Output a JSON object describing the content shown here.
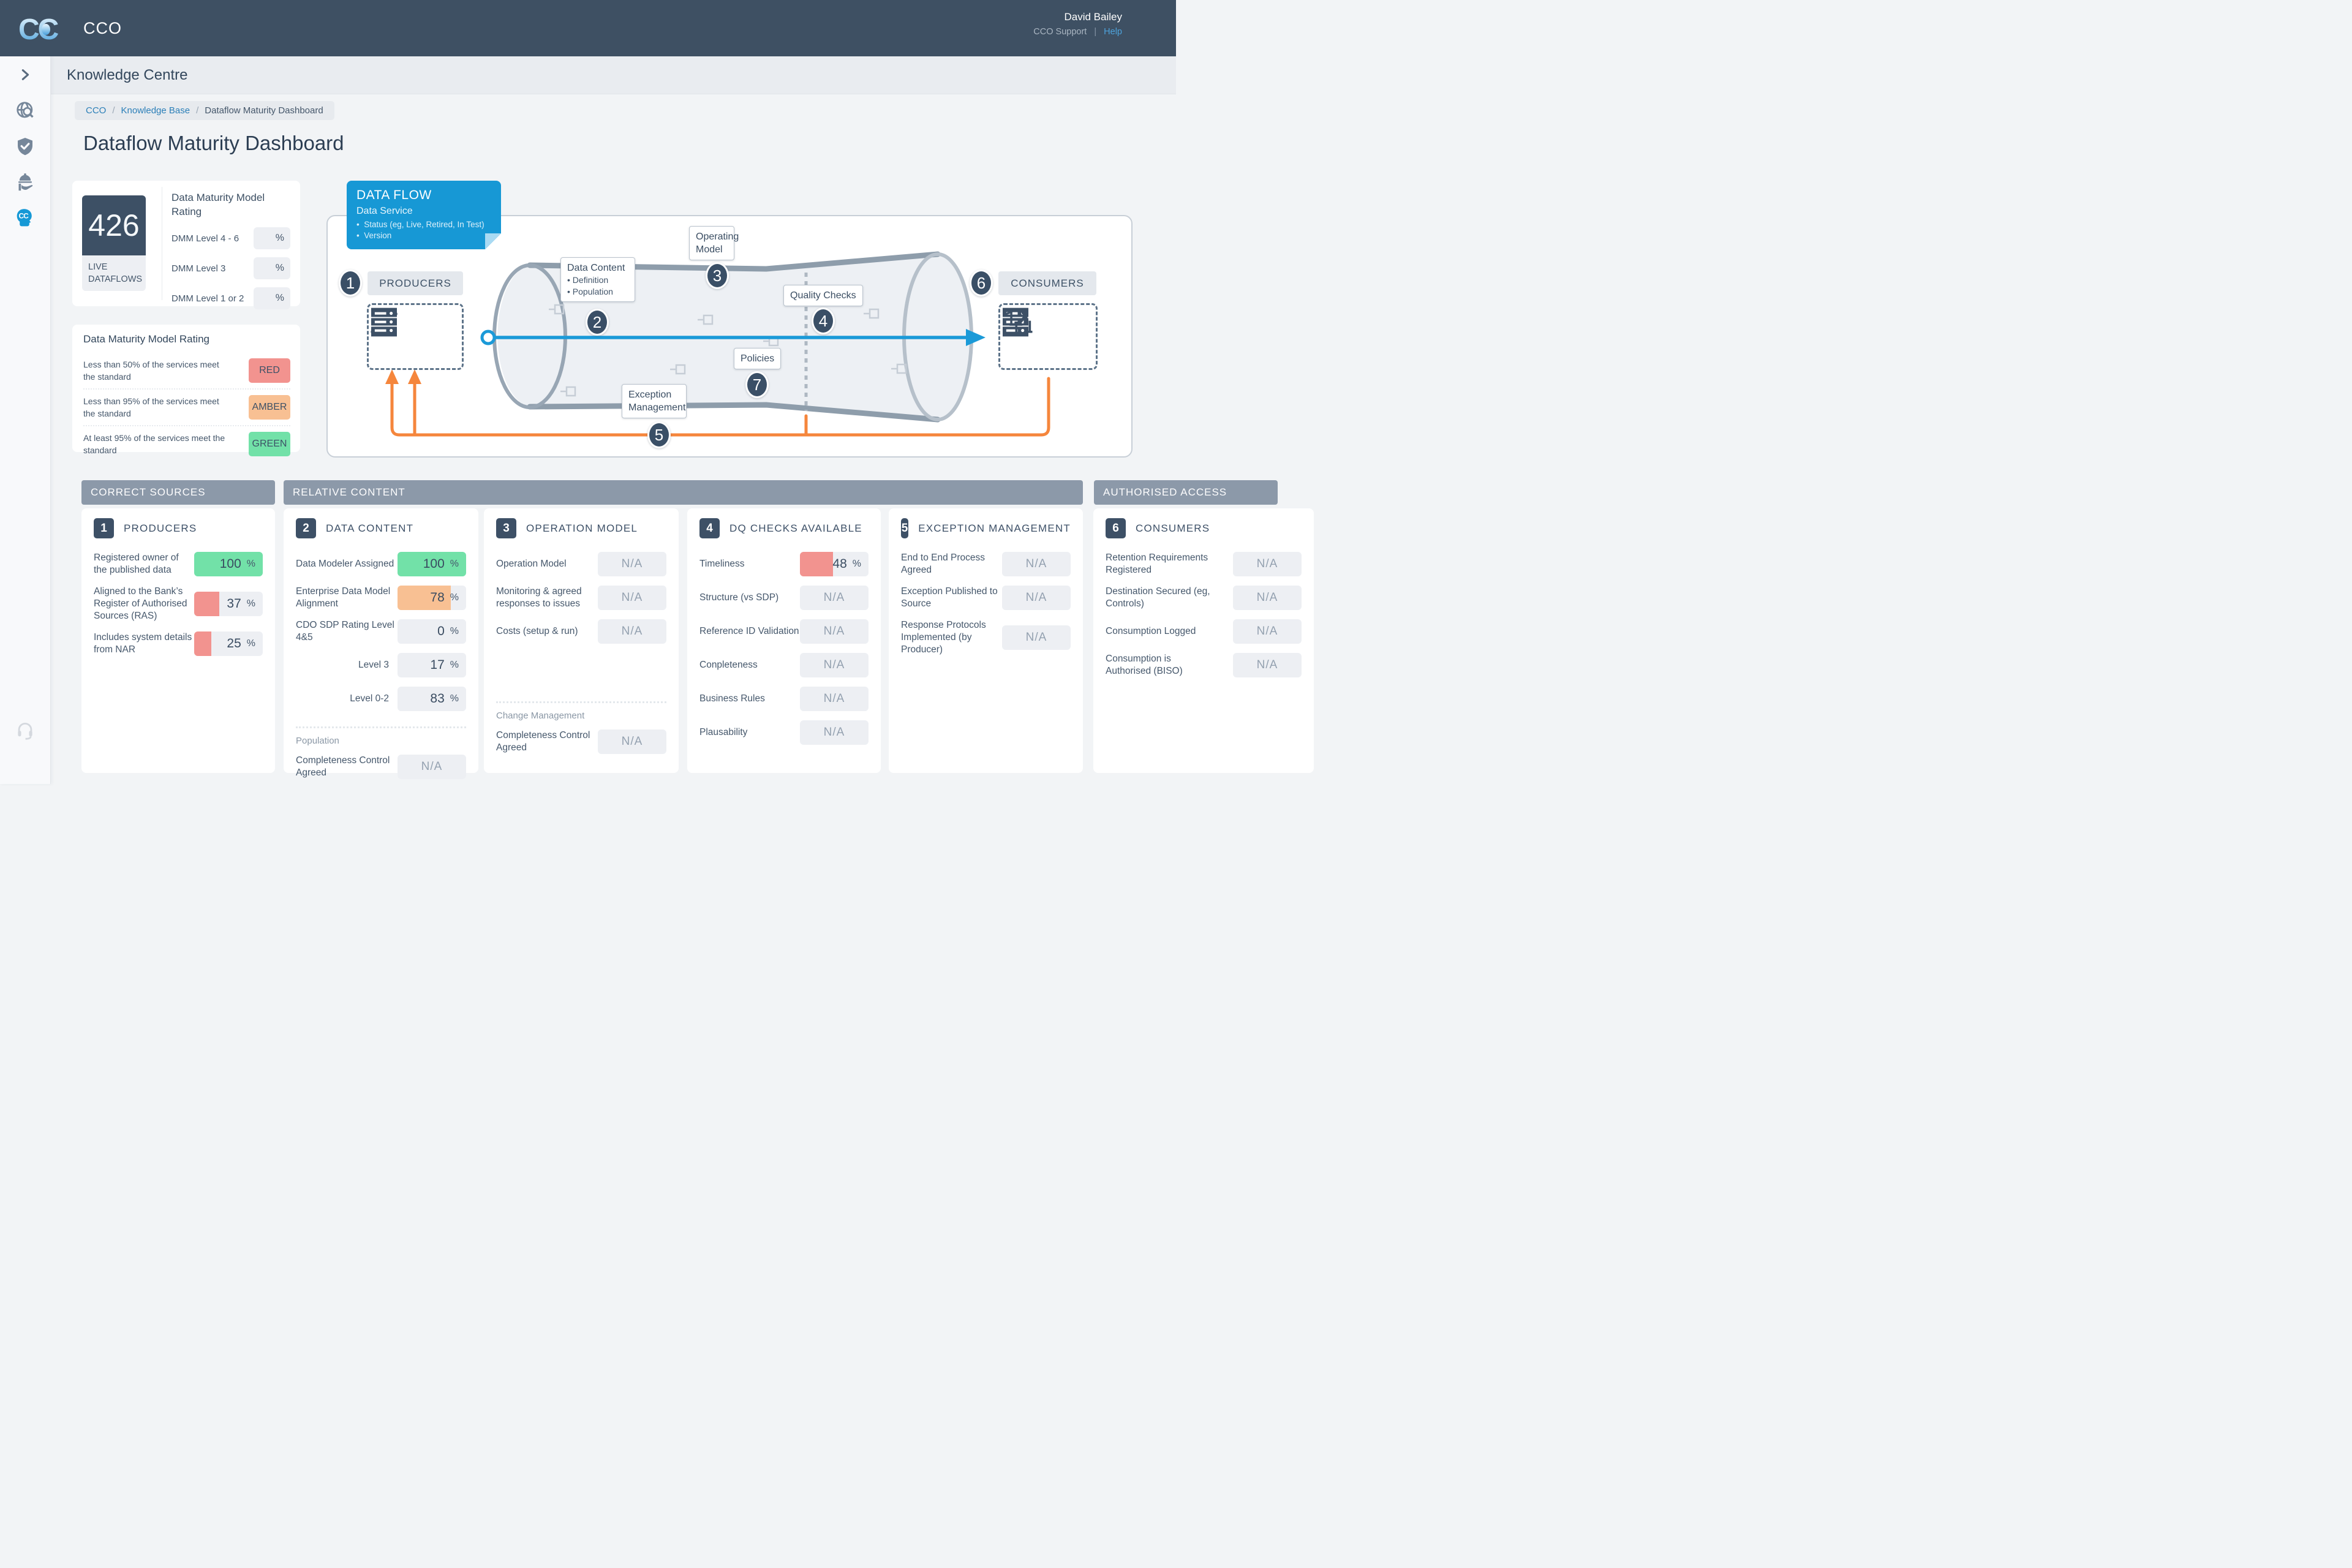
{
  "colors": {
    "header": "#3e5063",
    "accent_blue": "#1b9ad8",
    "tooltip_blue": "#1798d5",
    "orange": "#f5863c",
    "navy_badge": "#3a4f66",
    "band_gray": "#8c99a9",
    "green": "#72e1a8",
    "red": "#f2938f",
    "amber": "#f8c093"
  },
  "header": {
    "app_name": "CCO",
    "user_name": "David Bailey",
    "support_label": "CCO Support",
    "help_label": "Help"
  },
  "sidebar": {
    "items": [
      "expand-chevron",
      "global-search",
      "governance-shield",
      "data-services",
      "knowledge-centre",
      "support-headset"
    ]
  },
  "page": {
    "section": "Knowledge Centre",
    "breadcrumb": [
      {
        "label": "CCO"
      },
      {
        "label": "Knowledge Base"
      },
      {
        "label": "Dataflow Maturity Dashboard"
      }
    ],
    "title": "Dataflow Maturity Dashboard"
  },
  "stats": {
    "live_count": "426",
    "live_label": "LIVE DATAFLOWS",
    "rating_title": "Data Maturity Model Rating",
    "unit": "%",
    "rows": [
      {
        "label": "DMM Level 4 - 6"
      },
      {
        "label": "DMM Level 3"
      },
      {
        "label": "DMM Level 1 or 2"
      }
    ]
  },
  "legend": {
    "title": "Data Maturity Model Rating",
    "rows": [
      {
        "text": "Less than 50% of the services meet the standard",
        "badge": "RED",
        "tone": "red"
      },
      {
        "text": "Less than 95% of the services meet the standard",
        "badge": "AMBER",
        "tone": "amber"
      },
      {
        "text": "At least 95% of the services meet the standard",
        "badge": "GREEN",
        "tone": "green"
      }
    ]
  },
  "tooltip": {
    "title": "DATA FLOW",
    "subtitle": "Data Service",
    "bullets": [
      "Status (eg, Live, Retired, In Test)",
      "Version"
    ]
  },
  "diagram": {
    "steps": [
      "1",
      "2",
      "3",
      "4",
      "5",
      "6",
      "7"
    ],
    "producers_label": "PRODUCERS",
    "consumers_label": "CONSUMERS",
    "data_content": {
      "title": "Data Content",
      "bullets": [
        "Definition",
        "Population"
      ]
    },
    "operating_model": "Operating Model",
    "quality_checks": "Quality Checks",
    "policies": "Policies",
    "exception_management": "Exception Management"
  },
  "sections": {
    "correct_sources": "CORRECT SOURCES",
    "relative_content": "RELATIVE CONTENT",
    "authorised_access": "AUTHORISED ACCESS"
  },
  "columns": [
    {
      "num": "1",
      "title": "PRODUCERS",
      "rows": [
        {
          "label": "Registered owner of the published data",
          "value": "100",
          "unit": "%",
          "fill": 100,
          "tone": "green"
        },
        {
          "label": "Aligned to the Bank’s Register of Authorised Sources (RAS)",
          "value": "37",
          "unit": "%",
          "fill": 37,
          "tone": "red"
        },
        {
          "label": "Includes system details from NAR",
          "value": "25",
          "unit": "%",
          "fill": 25,
          "tone": "red"
        }
      ]
    },
    {
      "num": "2",
      "title": "DATA CONTENT",
      "rows": [
        {
          "label": "Data Modeler Assigned",
          "value": "100",
          "unit": "%",
          "fill": 100,
          "tone": "green"
        },
        {
          "label": "Enterprise Data Model Alignment",
          "value": "78",
          "unit": "%",
          "fill": 78,
          "tone": "amber"
        },
        {
          "label": "CDO SDP Rating Level 4&5",
          "value": "0",
          "unit": "%",
          "fill": 0
        },
        {
          "label": "Level 3",
          "value": "17",
          "unit": "%",
          "fill": 0,
          "align": "right"
        },
        {
          "label": "Level 0-2",
          "value": "83",
          "unit": "%",
          "fill": 0,
          "align": "right"
        }
      ],
      "footer": {
        "section_label": "Population",
        "rows": [
          {
            "label": "Completeness Control Agreed",
            "value": "N/A"
          }
        ]
      }
    },
    {
      "num": "3",
      "title": "OPERATION MODEL",
      "rows": [
        {
          "label": "Operation Model",
          "value": "N/A"
        },
        {
          "label": "Monitoring & agreed responses to issues",
          "value": "N/A"
        },
        {
          "label": "Costs (setup & run)",
          "value": "N/A"
        }
      ],
      "footer": {
        "section_label": "Change Management",
        "rows": [
          {
            "label": "Completeness Control Agreed",
            "value": "N/A"
          }
        ]
      }
    },
    {
      "num": "4",
      "title": "DQ CHECKS AVAILABLE",
      "rows": [
        {
          "label": "Timeliness",
          "value": "48",
          "unit": "%",
          "fill": 48,
          "tone": "red"
        },
        {
          "label": "Structure (vs SDP)",
          "value": "N/A"
        },
        {
          "label": "Reference ID Validation",
          "value": "N/A"
        },
        {
          "label": "Conpleteness",
          "value": "N/A"
        },
        {
          "label": "Business Rules",
          "value": "N/A"
        },
        {
          "label": "Plausability",
          "value": "N/A"
        }
      ]
    },
    {
      "num": "5",
      "title": "EXCEPTION MANAGEMENT",
      "rows": [
        {
          "label": "End to End Process Agreed",
          "value": "N/A"
        },
        {
          "label": "Exception Published to Source",
          "value": "N/A"
        },
        {
          "label": "Response Protocols Implemented (by Producer)",
          "value": "N/A"
        }
      ]
    },
    {
      "num": "6",
      "title": "CONSUMERS",
      "rows": [
        {
          "label": "Retention Requirements Registered",
          "value": "N/A"
        },
        {
          "label": "Destination Secured (eg, Controls)",
          "value": "N/A"
        },
        {
          "label": "Consumption Logged",
          "value": "N/A"
        },
        {
          "label": "Consumption is Authorised (BISO)",
          "value": "N/A"
        }
      ]
    }
  ]
}
